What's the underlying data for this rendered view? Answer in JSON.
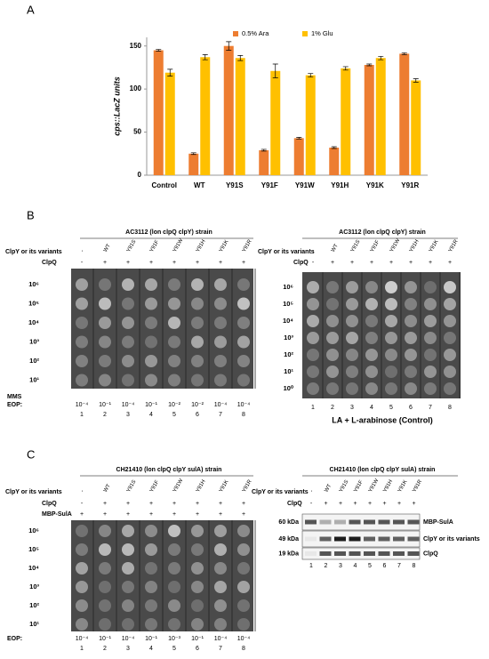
{
  "panel_labels": [
    "A",
    "B",
    "C"
  ],
  "chart_data": {
    "type": "bar",
    "y_label": "cps::LacZ units",
    "categories": [
      "Control",
      "WT",
      "Y91S",
      "Y91F",
      "Y91W",
      "Y91H",
      "Y91K",
      "Y91R"
    ],
    "series": [
      {
        "name": "0.5% Ara",
        "color": "#ed7d31",
        "values": [
          145,
          25,
          150,
          29,
          43,
          32,
          128,
          141
        ],
        "errors": [
          1,
          1,
          5,
          1,
          1,
          1,
          1,
          1
        ]
      },
      {
        "name": "1% Glu",
        "color": "#ffc000",
        "values": [
          119,
          137,
          136,
          121,
          116,
          124,
          136,
          110
        ],
        "errors": [
          4,
          3,
          3,
          8,
          2,
          2,
          2,
          2
        ]
      }
    ],
    "ylim": [
      0,
      160
    ],
    "yticks": [
      0,
      50,
      100,
      150
    ],
    "legend": "top-right"
  },
  "panel_b": {
    "left": {
      "title": "AC3112 (lon clpQ clpY) strain",
      "row_labels": [
        "ClpY or its variants",
        "ClpQ"
      ],
      "variants": [
        "-",
        "WT",
        "Y91S",
        "Y91F",
        "Y91W",
        "Y91H",
        "Y91K",
        "Y91R"
      ],
      "clpq": [
        "-",
        "+",
        "+",
        "+",
        "+",
        "+",
        "+",
        "+"
      ],
      "dilutions": [
        "10⁶",
        "10⁵",
        "10⁴",
        "10³",
        "10²",
        "10¹"
      ],
      "eop_label": [
        "MMS",
        "EOP:"
      ],
      "eop": [
        "10⁻⁴",
        "10⁻¹",
        "10⁻⁴",
        "10⁻¹",
        "10⁻²",
        "10⁻²",
        "10⁻⁴",
        "10⁻⁴"
      ],
      "lanes": [
        "1",
        "2",
        "3",
        "4",
        "5",
        "6",
        "7",
        "8"
      ]
    },
    "right": {
      "title": "AC3112 (lon clpQ clpY) strain",
      "row_labels": [
        "ClpY or its variants",
        "ClpQ"
      ],
      "variants": [
        "-",
        "WT",
        "Y91S",
        "Y91F",
        "Y91W",
        "Y91H",
        "Y91K",
        "Y91R"
      ],
      "clpq": [
        "-",
        "+",
        "+",
        "+",
        "+",
        "+",
        "+",
        "+"
      ],
      "dilutions": [
        "10⁶",
        "10⁵",
        "10⁴",
        "10³",
        "10²",
        "10¹",
        "10⁰"
      ],
      "lanes": [
        "1",
        "2",
        "3",
        "4",
        "5",
        "6",
        "7",
        "8"
      ],
      "footer": "LA  +  L-arabinose  (Control)"
    }
  },
  "panel_c": {
    "left": {
      "title": "CH21410 (lon clpQ clpY sulA) strain",
      "row_labels": [
        "ClpY or its variants",
        "ClpQ",
        "MBP-SulA"
      ],
      "variants": [
        "-",
        "WT",
        "Y91S",
        "Y91F",
        "Y91W",
        "Y91H",
        "Y91K",
        "Y91R"
      ],
      "clpq": [
        "-",
        "+",
        "+",
        "+",
        "+",
        "+",
        "+",
        "+"
      ],
      "mbp_sula": [
        "+",
        "+",
        "+",
        "+",
        "+",
        "+",
        "+",
        "+"
      ],
      "dilutions": [
        "10⁶",
        "10⁵",
        "10⁴",
        "10³",
        "10²",
        "10¹"
      ],
      "eop_label": [
        "EOP:"
      ],
      "eop": [
        "10⁻⁴",
        "10⁻¹",
        "10⁻⁴",
        "10⁻¹",
        "10⁻³",
        "10⁻¹",
        "10⁻⁴",
        "10⁻⁴"
      ],
      "lanes": [
        "1",
        "2",
        "3",
        "4",
        "5",
        "6",
        "7",
        "8"
      ]
    },
    "right": {
      "title": "CH21410 (lon clpQ clpY sulA) strain",
      "row_labels": [
        "ClpY or its variants",
        "ClpQ"
      ],
      "variants": [
        "-",
        "WT",
        "Y91S",
        "Y91F",
        "Y91W",
        "Y91H",
        "Y91K",
        "Y91R"
      ],
      "clpq": [
        "-",
        "+",
        "+",
        "+",
        "+",
        "+",
        "+",
        "+"
      ],
      "markers": [
        "60 kDa",
        "49 kDa",
        "19 kDa"
      ],
      "bands": [
        "MBP-SulA",
        "ClpY or its variants",
        "ClpQ"
      ],
      "lanes": [
        "1",
        "2",
        "3",
        "4",
        "5",
        "6",
        "7",
        "8"
      ]
    }
  }
}
